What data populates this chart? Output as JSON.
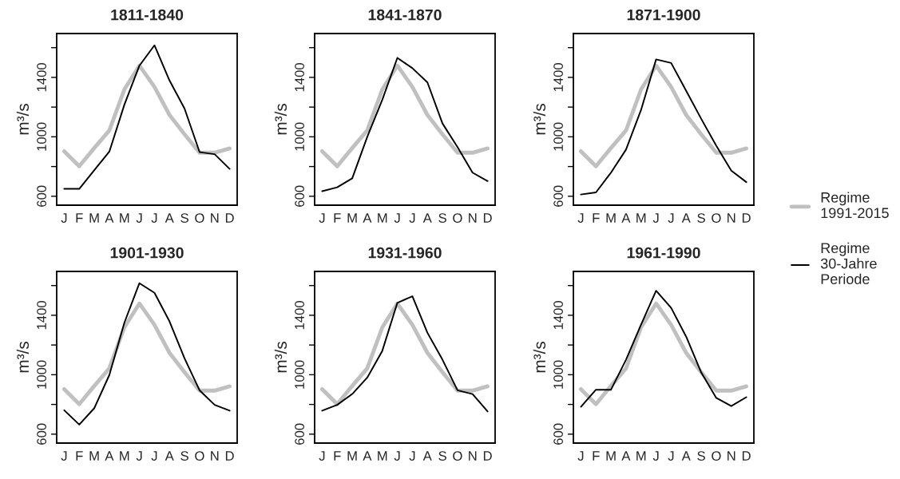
{
  "chart_data": [
    {
      "type": "line",
      "title": "1811-1840",
      "ylabel": "m³/s",
      "categories": [
        "J",
        "F",
        "M",
        "A",
        "M",
        "J",
        "J",
        "A",
        "S",
        "O",
        "N",
        "D"
      ],
      "ylim": [
        540,
        1695
      ],
      "yticks": [
        600,
        {
          "value": 800,
          "label": null
        },
        1000,
        {
          "value": 1200,
          "label": null
        },
        1400,
        {
          "value": 1600,
          "label": null
        }
      ],
      "legend": "right",
      "series": [
        {
          "name": "Regime\n1991-2015",
          "color": "#c0c0c0",
          "values": [
            903,
            802,
            925,
            1043,
            1319,
            1479,
            1336,
            1147,
            1017,
            893,
            893,
            922
          ]
        },
        {
          "name": "Regime\n30-Jahre\nPeriode",
          "color": "#000000",
          "values": [
            650,
            650,
            776,
            900,
            1216,
            1479,
            1616,
            1379,
            1190,
            897,
            883,
            784
          ]
        }
      ]
    },
    {
      "type": "line",
      "title": "1841-1870",
      "ylabel": "m³/s",
      "categories": [
        "J",
        "F",
        "M",
        "A",
        "M",
        "J",
        "J",
        "A",
        "S",
        "O",
        "N",
        "D"
      ],
      "ylim": [
        540,
        1695
      ],
      "yticks": [
        600,
        {
          "value": 800,
          "label": null
        },
        1000,
        {
          "value": 1200,
          "label": null
        },
        1400,
        {
          "value": 1600,
          "label": null
        }
      ],
      "series": [
        {
          "color": "#c0c0c0",
          "values": [
            903,
            802,
            925,
            1043,
            1319,
            1479,
            1336,
            1147,
            1017,
            893,
            893,
            922
          ]
        },
        {
          "color": "#000000",
          "values": [
            634,
            660,
            721,
            1000,
            1250,
            1531,
            1462,
            1366,
            1090,
            931,
            759,
            702
          ]
        }
      ]
    },
    {
      "type": "line",
      "title": "1871-1900",
      "ylabel": "m³/s",
      "categories": [
        "J",
        "F",
        "M",
        "A",
        "M",
        "J",
        "J",
        "A",
        "S",
        "O",
        "N",
        "D"
      ],
      "ylim": [
        540,
        1695
      ],
      "yticks": [
        600,
        {
          "value": 800,
          "label": null
        },
        1000,
        {
          "value": 1200,
          "label": null
        },
        1400,
        {
          "value": 1600,
          "label": null
        }
      ],
      "series": [
        {
          "color": "#c0c0c0",
          "values": [
            903,
            802,
            925,
            1043,
            1319,
            1479,
            1336,
            1147,
            1017,
            893,
            893,
            922
          ]
        },
        {
          "color": "#000000",
          "values": [
            612,
            626,
            759,
            914,
            1181,
            1521,
            1497,
            1310,
            1121,
            940,
            772,
            695
          ]
        }
      ]
    },
    {
      "type": "line",
      "title": "1901-1930",
      "ylabel": "m³/s",
      "categories": [
        "J",
        "F",
        "M",
        "A",
        "M",
        "J",
        "J",
        "A",
        "S",
        "O",
        "N",
        "D"
      ],
      "ylim": [
        540,
        1695
      ],
      "yticks": [
        600,
        {
          "value": 800,
          "label": null
        },
        1000,
        {
          "value": 1200,
          "label": null
        },
        1400,
        {
          "value": 1600,
          "label": null
        }
      ],
      "series": [
        {
          "color": "#c0c0c0",
          "values": [
            903,
            802,
            925,
            1043,
            1319,
            1479,
            1336,
            1147,
            1017,
            893,
            893,
            922
          ]
        },
        {
          "color": "#000000",
          "values": [
            761,
            664,
            775,
            998,
            1350,
            1616,
            1551,
            1359,
            1110,
            895,
            797,
            758
          ]
        }
      ]
    },
    {
      "type": "line",
      "title": "1931-1960",
      "ylabel": "m³/s",
      "categories": [
        "J",
        "F",
        "M",
        "A",
        "M",
        "J",
        "J",
        "A",
        "S",
        "O",
        "N",
        "D"
      ],
      "ylim": [
        540,
        1695
      ],
      "yticks": [
        600,
        {
          "value": 800,
          "label": null
        },
        1000,
        {
          "value": 1200,
          "label": null
        },
        1400,
        {
          "value": 1600,
          "label": null
        }
      ],
      "series": [
        {
          "color": "#c0c0c0",
          "values": [
            903,
            802,
            925,
            1043,
            1319,
            1479,
            1336,
            1147,
            1017,
            893,
            893,
            922
          ]
        },
        {
          "color": "#000000",
          "values": [
            758,
            797,
            870,
            981,
            1161,
            1484,
            1528,
            1282,
            1101,
            895,
            870,
            753
          ]
        }
      ]
    },
    {
      "type": "line",
      "title": "1961-1990",
      "ylabel": "m³/s",
      "categories": [
        "J",
        "F",
        "M",
        "A",
        "M",
        "J",
        "J",
        "A",
        "S",
        "O",
        "N",
        "D"
      ],
      "ylim": [
        540,
        1695
      ],
      "yticks": [
        600,
        {
          "value": 800,
          "label": null
        },
        1000,
        {
          "value": 1200,
          "label": null
        },
        1400,
        {
          "value": 1600,
          "label": null
        }
      ],
      "series": [
        {
          "color": "#c0c0c0",
          "values": [
            903,
            802,
            925,
            1043,
            1319,
            1479,
            1336,
            1147,
            1017,
            893,
            893,
            922
          ]
        },
        {
          "color": "#000000",
          "values": [
            784,
            899,
            899,
            1101,
            1337,
            1565,
            1450,
            1256,
            1015,
            844,
            789,
            849
          ]
        }
      ]
    }
  ]
}
